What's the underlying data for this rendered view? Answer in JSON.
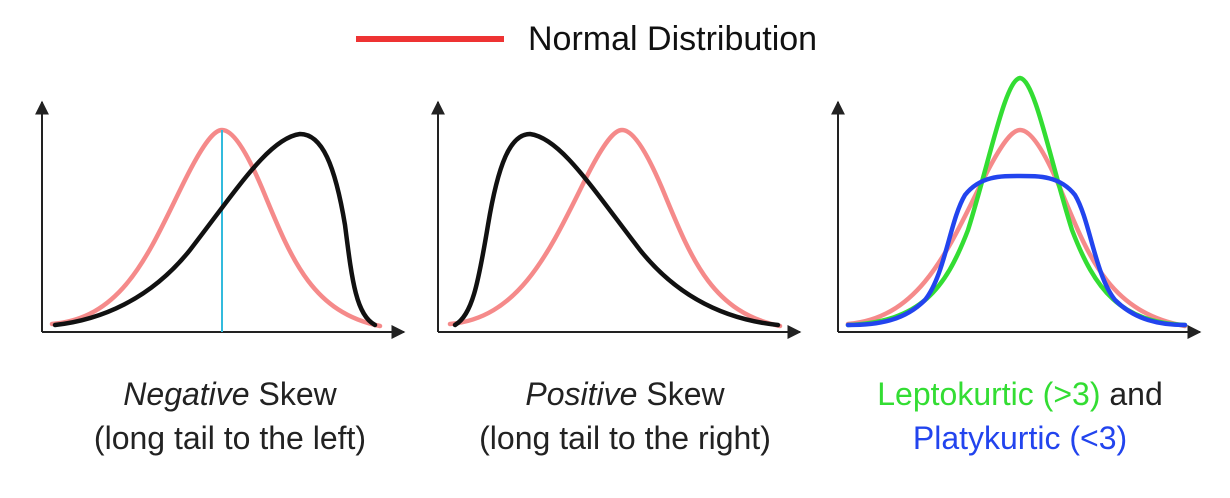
{
  "legend": {
    "label": "Normal Distribution",
    "color": "#ee3333"
  },
  "panels": [
    {
      "caption_italic": "Negative",
      "caption_rest": " Skew",
      "caption_line2": "(long tail to the left)"
    },
    {
      "caption_italic": "Positive",
      "caption_rest": " Skew",
      "caption_line2": "(long tail to the right)"
    },
    {
      "caption_a": "Leptokurtic (>3)",
      "caption_and": " and",
      "caption_b": "Platykurtic (<3)"
    }
  ],
  "colors": {
    "normal": "#f58a8a",
    "skewed": "#111111",
    "mean_line": "#33bbdd",
    "leptokurtic": "#33dd33",
    "platykurtic": "#2244ee",
    "axis": "#222222"
  },
  "icons": [
    "axis-arrow-icon"
  ]
}
